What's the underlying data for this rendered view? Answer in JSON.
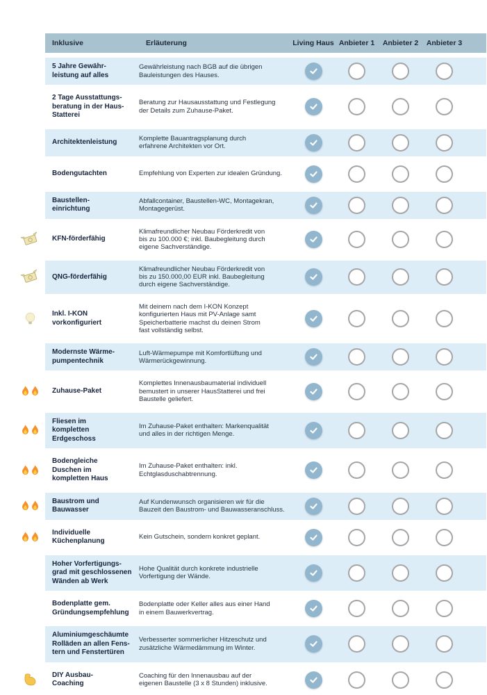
{
  "table": {
    "colors": {
      "header_bg": "#a9c2d0",
      "header_text": "#1e2b36",
      "row_shaded_bg": "#dcedf8",
      "check_fill": "#91b6ce",
      "circle_border": "#a5a5a5",
      "label_color": "#17243c",
      "desc_color": "#25313f"
    },
    "header": {
      "inklusive": "Inklusive",
      "erlaeuterung": "Erläuterung"
    },
    "providers": [
      "Living Haus",
      "Anbieter 1",
      "Anbieter 2",
      "Anbieter 3"
    ],
    "rows": [
      {
        "icon": null,
        "label": "5 Jahre Gewähr-\nleistung auf alles",
        "description": "Gewährleistung nach BGB auf die übrigen\nBauleistungen des Hauses.",
        "checks": [
          true,
          false,
          false,
          false
        ]
      },
      {
        "icon": null,
        "label": "2 Tage Ausstattungs-\nberatung in der Haus-\nStatterei",
        "description": "Beratung zur Hausausstattung und Festlegung\nder Details zum Zuhause-Paket.",
        "checks": [
          true,
          false,
          false,
          false
        ]
      },
      {
        "icon": null,
        "label": "Architektenleistung",
        "description": "Komplette Bauantragsplanung durch\nerfahrene Architekten vor Ort.",
        "checks": [
          true,
          false,
          false,
          false
        ]
      },
      {
        "icon": null,
        "label": "Bodengutachten",
        "description": "Empfehlung von Experten zur idealen Gründung.",
        "checks": [
          true,
          false,
          false,
          false
        ]
      },
      {
        "icon": null,
        "label": "Baustellen-\neinrichtung",
        "description": "Abfallcontainer, Baustellen-WC, Montagekran,\nMontagegerüst.",
        "checks": [
          true,
          false,
          false,
          false
        ]
      },
      {
        "icon": "money-wings",
        "label": "KFN-förderfähig",
        "description": "Klimafreundlicher Neubau Förderkredit von\nbis zu 100.000 €; inkl. Baubegleitung durch\neigene Sachverständige.",
        "checks": [
          true,
          false,
          false,
          false
        ]
      },
      {
        "icon": "money-wings",
        "label": "QNG-förderfähig",
        "description": "Klimafreundlicher Neubau Förderkredit von\nbis zu 150.000,00 EUR inkl. Baubegleitung\ndurch eigene Sachverständige.",
        "checks": [
          true,
          false,
          false,
          false
        ]
      },
      {
        "icon": "bulb",
        "label": "Inkl. I-KON\nvorkonfiguriert",
        "description": "Mit deinem nach dem I-KON Konzept\nkonfigurierten Haus mit PV-Anlage samt\nSpeicherbatterie machst du deinen Strom\nfast vollständig selbst.",
        "checks": [
          true,
          false,
          false,
          false
        ]
      },
      {
        "icon": null,
        "label": "Modernste Wärme-\npumpentechnik",
        "description": "Luft-Wärmepumpe mit Komfortlüftung und\nWärmerückgewinnung.",
        "checks": [
          true,
          false,
          false,
          false
        ]
      },
      {
        "icon": "fire-double",
        "label": "Zuhause-Paket",
        "description": "Komplettes Innenausbaumaterial individuell\nbemustert in unserer HausStatterei und frei\nBaustelle geliefert.",
        "checks": [
          true,
          false,
          false,
          false
        ]
      },
      {
        "icon": "fire-double",
        "label": "Fliesen im\nkompletten\nErdgeschoss",
        "description": "Im Zuhause-Paket enthalten: Markenqualität\nund alles in der richtigen Menge.",
        "checks": [
          true,
          false,
          false,
          false
        ]
      },
      {
        "icon": "fire-double",
        "label": "Bodengleiche\nDuschen im\nkompletten Haus",
        "description": "Im Zuhause-Paket enthalten: inkl.\nEchtglasduschabtrennung.",
        "checks": [
          true,
          false,
          false,
          false
        ]
      },
      {
        "icon": "fire-double",
        "label": "Baustrom und\nBauwasser",
        "description": "Auf Kundenwunsch organisieren wir für die\nBauzeit den Baustrom- und Bauwasseranschluss.",
        "checks": [
          true,
          false,
          false,
          false
        ]
      },
      {
        "icon": "fire-double",
        "label": "Individuelle\nKüchenplanung",
        "description": "Kein Gutschein, sondern konkret geplant.",
        "checks": [
          true,
          false,
          false,
          false
        ]
      },
      {
        "icon": null,
        "label": "Hoher Vorfertigungs-\ngrad mit geschlossenen\nWänden ab Werk",
        "description": "Hohe Qualität durch konkrete industrielle\nVorfertigung der Wände.",
        "checks": [
          true,
          false,
          false,
          false
        ]
      },
      {
        "icon": null,
        "label": "Bodenplatte gem.\nGründungsempfehlung",
        "description": "Bodenplatte oder Keller alles aus einer Hand\nin einem Bauwerkvertrag.",
        "checks": [
          true,
          false,
          false,
          false
        ]
      },
      {
        "icon": null,
        "label": "Aluminiumgeschäumte\nRolläden an allen Fens-\ntern und Fenstertüren",
        "description": "Verbesserter sommerlicher Hitzeschutz und\nzusätzliche Wärmedämmung im Winter.",
        "checks": [
          true,
          false,
          false,
          false
        ]
      },
      {
        "icon": "muscle",
        "label": "DIY Ausbau-\nCoaching",
        "description": "Coaching für den Innenausbau auf der\neigenen Baustelle (3 x 8 Stunden) inklusive.",
        "checks": [
          true,
          false,
          false,
          false
        ]
      }
    ]
  }
}
